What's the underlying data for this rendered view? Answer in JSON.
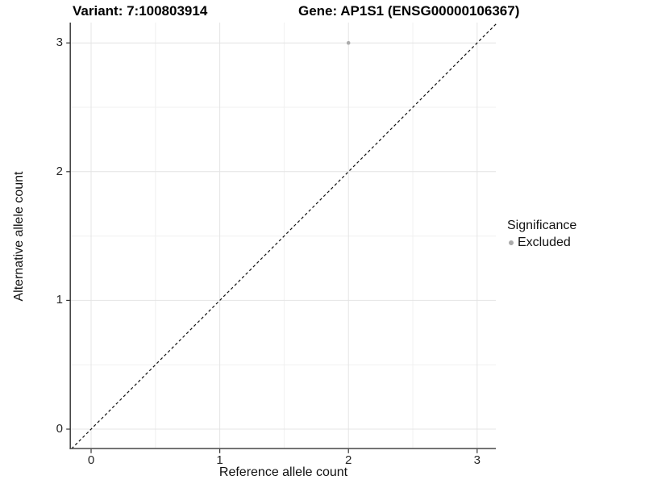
{
  "figure": {
    "title_variant": "Variant: 7:100803914",
    "title_gene": "Gene: AP1S1 (ENSG00000106367)"
  },
  "chart_data": {
    "type": "scatter",
    "titles": [
      "Variant: 7:100803914",
      "Gene: AP1S1 (ENSG00000106367)"
    ],
    "xlabel": "Reference allele count",
    "ylabel": "Alternative allele count",
    "xlim": [
      -0.16,
      3.16
    ],
    "ylim": [
      -0.16,
      3.16
    ],
    "x_ticks": [
      0,
      1,
      2,
      3
    ],
    "y_ticks": [
      0,
      1,
      2,
      3
    ],
    "x_minor_ticks": [
      0.5,
      1.5,
      2.5
    ],
    "y_minor_ticks": [
      0.5,
      1.5,
      2.5
    ],
    "grid": "major and minor gridlines on",
    "points": [
      {
        "x": 2,
        "y": 3,
        "series": "Excluded"
      }
    ],
    "series": [
      {
        "name": "Excluded",
        "color": "#ababab"
      }
    ],
    "reference_line": {
      "kind": "identity y=x",
      "style": "dashed",
      "color": "#111111"
    },
    "legend": {
      "title": "Significance",
      "position": "right",
      "entries": [
        {
          "label": "Excluded",
          "color": "#ababab"
        }
      ]
    }
  },
  "colors": {
    "background": "#ffffff",
    "grid_major": "#e4e4e4",
    "grid_minor": "#f0f0f0",
    "axis_line": "#474747",
    "tick_mark": "#333333",
    "tick_text": "#262626",
    "point": "#ababab"
  }
}
